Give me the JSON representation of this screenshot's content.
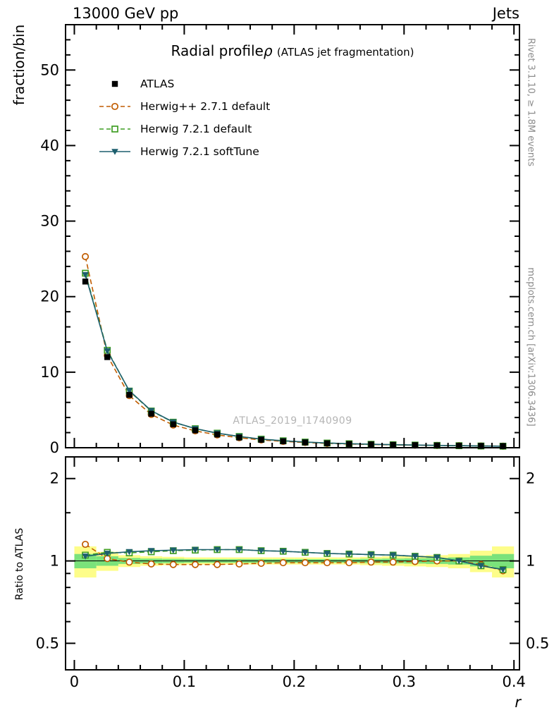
{
  "header": {
    "left": "13000 GeV pp",
    "right": "Jets"
  },
  "side_notes": {
    "rivet": "Rivet 3.1.10, ≥ 1.8M events",
    "mcplots": "mcplots.cern.ch [arXiv:1306.3436]"
  },
  "watermark": "ATLAS_2019_I1740909",
  "chart_data": [
    {
      "type": "line",
      "panel": "main",
      "title": "Radial profile",
      "title_symbol": "ρ",
      "subtitle": "(ATLAS jet fragmentation)",
      "ylabel": "fraction/bin",
      "xlabel": "r",
      "grid": false,
      "legend_position": "top-left-inside",
      "xlim": [
        -0.008,
        0.405
      ],
      "ylim": [
        0,
        56
      ],
      "yticks": [
        0,
        10,
        20,
        30,
        40,
        50
      ],
      "xticks": [
        0,
        0.1,
        0.2,
        0.3,
        0.4
      ],
      "x": [
        0.01,
        0.03,
        0.05,
        0.07,
        0.09,
        0.11,
        0.13,
        0.15,
        0.17,
        0.19,
        0.21,
        0.23,
        0.25,
        0.27,
        0.29,
        0.31,
        0.33,
        0.35,
        0.37,
        0.39
      ],
      "series": [
        {
          "name": "ATLAS",
          "color": "#000000",
          "marker": "filled-square",
          "line": "none",
          "values": [
            22.0,
            12.0,
            7.0,
            4.5,
            3.1,
            2.3,
            1.75,
            1.35,
            1.05,
            0.85,
            0.7,
            0.58,
            0.5,
            0.44,
            0.38,
            0.34,
            0.3,
            0.27,
            0.24,
            0.22
          ]
        },
        {
          "name": "Herwig++ 2.7.1 default",
          "color": "#c05c00",
          "marker": "open-circle",
          "line": "dashed",
          "values": [
            25.3,
            12.2,
            6.9,
            4.4,
            3.0,
            2.23,
            1.7,
            1.32,
            1.03,
            0.84,
            0.69,
            0.57,
            0.49,
            0.435,
            0.376,
            0.338,
            0.3,
            0.27,
            0.233,
            0.202
          ]
        },
        {
          "name": "Herwig 7.2.1 default",
          "color": "#3f9e23",
          "marker": "open-square",
          "line": "dashed",
          "values": [
            23.1,
            12.9,
            7.5,
            4.86,
            3.38,
            2.52,
            1.93,
            1.49,
            1.14,
            0.92,
            0.75,
            0.62,
            0.53,
            0.46,
            0.4,
            0.354,
            0.309,
            0.27,
            0.23,
            0.205
          ]
        },
        {
          "name": "Herwig 7.2.1 softTune",
          "color": "#1d5f6e",
          "marker": "filled-triangle-down",
          "line": "solid",
          "values": [
            22.9,
            12.8,
            7.55,
            4.9,
            3.4,
            2.53,
            1.93,
            1.49,
            1.14,
            0.92,
            0.75,
            0.62,
            0.53,
            0.46,
            0.4,
            0.354,
            0.309,
            0.27,
            0.23,
            0.205
          ]
        }
      ]
    },
    {
      "type": "line",
      "panel": "ratio",
      "ylabel": "Ratio to ATLAS",
      "yscale": "log",
      "ylim": [
        0.4,
        2.4
      ],
      "yticks": [
        0.5,
        1,
        2
      ],
      "yticks_minor": [
        0.6,
        0.7,
        0.8,
        0.9,
        1.5
      ],
      "reference_line": 1,
      "band_colors": {
        "outer": "#fdfd8a",
        "inner": "#7be27b"
      },
      "band_outer_halfwidth": [
        0.13,
        0.08,
        0.05,
        0.04,
        0.035,
        0.03,
        0.03,
        0.03,
        0.03,
        0.03,
        0.03,
        0.03,
        0.03,
        0.035,
        0.04,
        0.045,
        0.05,
        0.06,
        0.09,
        0.13
      ],
      "band_inner_halfwidth": [
        0.06,
        0.04,
        0.025,
        0.02,
        0.018,
        0.015,
        0.015,
        0.015,
        0.015,
        0.015,
        0.015,
        0.015,
        0.015,
        0.018,
        0.02,
        0.022,
        0.025,
        0.03,
        0.045,
        0.06
      ],
      "series": [
        {
          "name": "Herwig++ 2.7.1 default",
          "color": "#c05c00",
          "marker": "open-circle",
          "line": "dashed",
          "values": [
            1.15,
            1.02,
            0.99,
            0.975,
            0.97,
            0.97,
            0.97,
            0.975,
            0.98,
            0.985,
            0.985,
            0.985,
            0.985,
            0.99,
            0.99,
            0.995,
            1.0,
            1.0,
            0.97,
            0.92
          ]
        },
        {
          "name": "Herwig 7.2.1 default",
          "color": "#3f9e23",
          "marker": "open-square",
          "line": "dashed",
          "values": [
            1.05,
            1.075,
            1.07,
            1.08,
            1.09,
            1.095,
            1.1,
            1.1,
            1.09,
            1.085,
            1.075,
            1.065,
            1.06,
            1.055,
            1.05,
            1.04,
            1.03,
            1.0,
            0.96,
            0.93
          ]
        },
        {
          "name": "Herwig 7.2.1 softTune",
          "color": "#1d5f6e",
          "marker": "filled-triangle-down",
          "line": "solid",
          "values": [
            1.04,
            1.065,
            1.08,
            1.09,
            1.095,
            1.1,
            1.1,
            1.1,
            1.09,
            1.085,
            1.075,
            1.065,
            1.06,
            1.055,
            1.05,
            1.04,
            1.03,
            1.0,
            0.96,
            0.93
          ]
        }
      ]
    }
  ]
}
